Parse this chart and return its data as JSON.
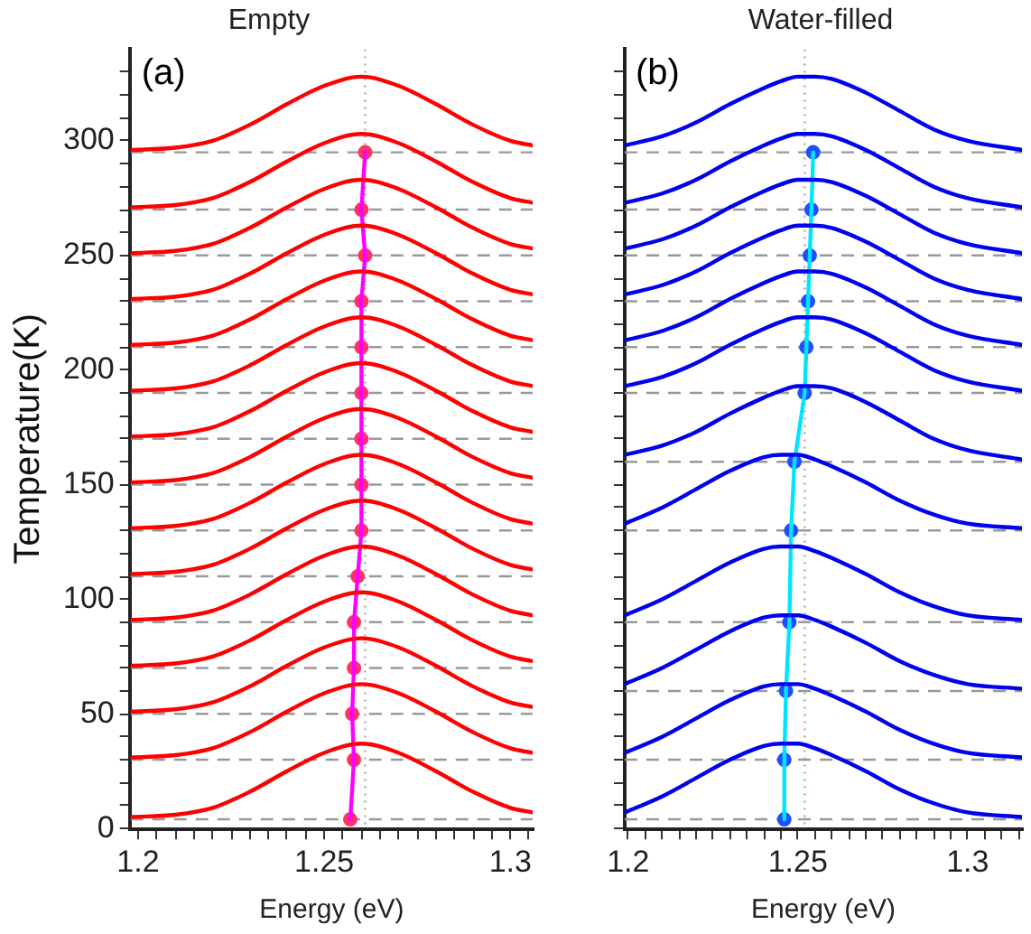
{
  "chart_data": [
    {
      "type": "line",
      "title": "Empty",
      "xlabel": "Energy (eV)",
      "ylabel": "Temperature(K)",
      "annotations": [
        "(a)"
      ],
      "grid": false,
      "x": [
        1.198,
        1.21,
        1.22,
        1.23,
        1.24,
        1.25,
        1.26,
        1.27,
        1.28,
        1.29,
        1.3,
        1.306
      ],
      "xlim": [
        1.198,
        1.306
      ],
      "xticks": [
        1.2,
        {
          "value": 1.205,
          "label": null
        },
        {
          "value": 1.21,
          "label": null
        },
        {
          "value": 1.215,
          "label": null
        },
        {
          "value": 1.22,
          "label": null
        },
        {
          "value": 1.225,
          "label": null
        },
        {
          "value": 1.23,
          "label": null
        },
        {
          "value": 1.235,
          "label": null
        },
        {
          "value": 1.24,
          "label": null
        },
        {
          "value": 1.245,
          "label": null
        },
        1.25,
        {
          "value": 1.255,
          "label": null
        },
        {
          "value": 1.26,
          "label": null
        },
        {
          "value": 1.265,
          "label": null
        },
        {
          "value": 1.27,
          "label": null
        },
        {
          "value": 1.275,
          "label": null
        },
        {
          "value": 1.28,
          "label": null
        },
        {
          "value": 1.285,
          "label": null
        },
        {
          "value": 1.29,
          "label": null
        },
        {
          "value": 1.295,
          "label": null
        },
        1.3,
        {
          "value": 1.305,
          "label": null
        }
      ],
      "ylim": [
        0,
        340
      ],
      "yticks": [
        0,
        {
          "value": 10,
          "label": null
        },
        {
          "value": 20,
          "label": null
        },
        {
          "value": 30,
          "label": null
        },
        {
          "value": 40,
          "label": null
        },
        50,
        {
          "value": 60,
          "label": null
        },
        {
          "value": 70,
          "label": null
        },
        {
          "value": 80,
          "label": null
        },
        {
          "value": 90,
          "label": null
        },
        100,
        {
          "value": 110,
          "label": null
        },
        {
          "value": 120,
          "label": null
        },
        {
          "value": 130,
          "label": null
        },
        {
          "value": 140,
          "label": null
        },
        150,
        {
          "value": 160,
          "label": null
        },
        {
          "value": 170,
          "label": null
        },
        {
          "value": 180,
          "label": null
        },
        {
          "value": 190,
          "label": null
        },
        200,
        {
          "value": 210,
          "label": null
        },
        {
          "value": 220,
          "label": null
        },
        {
          "value": 230,
          "label": null
        },
        {
          "value": 240,
          "label": null
        },
        250,
        {
          "value": 260,
          "label": null
        },
        {
          "value": 270,
          "label": null
        },
        {
          "value": 280,
          "label": null
        },
        {
          "value": 290,
          "label": null
        },
        300,
        {
          "value": 310,
          "label": null
        },
        {
          "value": 320,
          "label": null
        },
        {
          "value": 330,
          "label": null
        }
      ],
      "series": [
        {
          "color": "#ff0000",
          "values": [
            5,
            6,
            9,
            16,
            25,
            33,
            37,
            33,
            25,
            16,
            9,
            7
          ]
        },
        {
          "color": "#ff0000",
          "values": [
            31,
            32,
            35,
            42,
            51,
            59,
            63,
            59,
            51,
            42,
            35,
            33
          ]
        },
        {
          "color": "#ff0000",
          "values": [
            51,
            52,
            55,
            62,
            71,
            79,
            83,
            79,
            71,
            62,
            55,
            53
          ]
        },
        {
          "color": "#ff0000",
          "values": [
            71,
            72,
            75,
            82,
            91,
            99,
            103,
            99,
            91,
            82,
            75,
            73
          ]
        },
        {
          "color": "#ff0000",
          "values": [
            91,
            92,
            95,
            102,
            111,
            119,
            123,
            119,
            111,
            102,
            95,
            93
          ]
        },
        {
          "color": "#ff0000",
          "values": [
            111,
            112,
            115,
            122,
            131,
            139,
            143,
            139,
            131,
            122,
            115,
            113
          ]
        },
        {
          "color": "#ff0000",
          "values": [
            131,
            132,
            135,
            142,
            151,
            159,
            163,
            159,
            151,
            142,
            135,
            133
          ]
        },
        {
          "color": "#ff0000",
          "values": [
            151,
            152,
            155,
            162,
            171,
            179,
            183,
            179,
            171,
            162,
            155,
            153
          ]
        },
        {
          "color": "#ff0000",
          "values": [
            171,
            172,
            175,
            182,
            191,
            199,
            203,
            199,
            191,
            182,
            175,
            173
          ]
        },
        {
          "color": "#ff0000",
          "values": [
            191,
            192,
            195,
            202,
            211,
            219,
            223,
            219,
            211,
            202,
            195,
            193
          ]
        },
        {
          "color": "#ff0000",
          "values": [
            211,
            212,
            215,
            222,
            231,
            239,
            243,
            239,
            231,
            222,
            215,
            213
          ]
        },
        {
          "color": "#ff0000",
          "values": [
            231,
            232,
            235,
            242,
            251,
            259,
            263,
            259,
            251,
            242,
            235,
            233
          ]
        },
        {
          "color": "#ff0000",
          "values": [
            251,
            252,
            255,
            262,
            271,
            279,
            283,
            279,
            271,
            262,
            255,
            253
          ]
        },
        {
          "color": "#ff0000",
          "values": [
            271,
            272,
            275,
            282,
            291,
            299,
            303,
            299,
            291,
            282,
            275,
            273
          ]
        },
        {
          "color": "#ff0000",
          "values": [
            296,
            297,
            300,
            307,
            316,
            324,
            328,
            324,
            316,
            307,
            300,
            298
          ]
        },
        {
          "type": "line",
          "color": "#ff00ff",
          "marker": "none",
          "x": [
            1.257,
            1.258,
            1.2575,
            1.258,
            1.258,
            1.259,
            1.26,
            1.26,
            1.26,
            1.26,
            1.26,
            1.26,
            1.261,
            1.26,
            1.261
          ],
          "values": [
            4,
            30,
            50,
            70,
            90,
            110,
            130,
            150,
            170,
            190,
            210,
            230,
            250,
            270,
            295
          ]
        },
        {
          "type": "scatter",
          "color": "#ff3366",
          "marker": "circle",
          "x": [
            1.257,
            1.258,
            1.2575,
            1.258,
            1.258,
            1.259,
            1.26,
            1.26,
            1.26,
            1.26,
            1.26,
            1.26,
            1.261,
            1.26,
            1.261
          ],
          "values": [
            4,
            30,
            50,
            70,
            90,
            110,
            130,
            150,
            170,
            190,
            210,
            230,
            250,
            270,
            295
          ]
        }
      ],
      "ref_lines": [
        {
          "axis": "y",
          "value": 4,
          "color": "#999999",
          "line_style": "dashed"
        },
        {
          "axis": "y",
          "value": 30,
          "color": "#999999",
          "line_style": "dashed"
        },
        {
          "axis": "y",
          "value": 50,
          "color": "#999999",
          "line_style": "dashed"
        },
        {
          "axis": "y",
          "value": 70,
          "color": "#999999",
          "line_style": "dashed"
        },
        {
          "axis": "y",
          "value": 90,
          "color": "#999999",
          "line_style": "dashed"
        },
        {
          "axis": "y",
          "value": 110,
          "color": "#999999",
          "line_style": "dashed"
        },
        {
          "axis": "y",
          "value": 130,
          "color": "#999999",
          "line_style": "dashed"
        },
        {
          "axis": "y",
          "value": 150,
          "color": "#999999",
          "line_style": "dashed"
        },
        {
          "axis": "y",
          "value": 170,
          "color": "#999999",
          "line_style": "dashed"
        },
        {
          "axis": "y",
          "value": 190,
          "color": "#999999",
          "line_style": "dashed"
        },
        {
          "axis": "y",
          "value": 210,
          "color": "#999999",
          "line_style": "dashed"
        },
        {
          "axis": "y",
          "value": 230,
          "color": "#999999",
          "line_style": "dashed"
        },
        {
          "axis": "y",
          "value": 250,
          "color": "#999999",
          "line_style": "dashed"
        },
        {
          "axis": "y",
          "value": 270,
          "color": "#999999",
          "line_style": "dashed"
        },
        {
          "axis": "y",
          "value": 295,
          "color": "#999999",
          "line_style": "dashed"
        },
        {
          "axis": "x",
          "value": 1.261,
          "color": "#aaaaaa",
          "line_style": "dotted"
        }
      ]
    },
    {
      "type": "line",
      "title": "Water-filled",
      "xlabel": "Energy (eV)",
      "annotations": [
        "(b)"
      ],
      "grid": false,
      "tick_labels": "x",
      "x": [
        1.199,
        1.21,
        1.22,
        1.23,
        1.24,
        1.245,
        1.25,
        1.255,
        1.26,
        1.27,
        1.28,
        1.29,
        1.3,
        1.316
      ],
      "xlim": [
        1.199,
        1.316
      ],
      "xticks": [
        1.2,
        {
          "value": 1.205,
          "label": null
        },
        {
          "value": 1.21,
          "label": null
        },
        {
          "value": 1.215,
          "label": null
        },
        {
          "value": 1.22,
          "label": null
        },
        {
          "value": 1.225,
          "label": null
        },
        {
          "value": 1.23,
          "label": null
        },
        {
          "value": 1.235,
          "label": null
        },
        {
          "value": 1.24,
          "label": null
        },
        {
          "value": 1.245,
          "label": null
        },
        1.25,
        {
          "value": 1.255,
          "label": null
        },
        {
          "value": 1.26,
          "label": null
        },
        {
          "value": 1.265,
          "label": null
        },
        {
          "value": 1.27,
          "label": null
        },
        {
          "value": 1.275,
          "label": null
        },
        {
          "value": 1.28,
          "label": null
        },
        {
          "value": 1.285,
          "label": null
        },
        {
          "value": 1.29,
          "label": null
        },
        {
          "value": 1.295,
          "label": null
        },
        1.3,
        {
          "value": 1.305,
          "label": null
        },
        {
          "value": 1.31,
          "label": null
        },
        {
          "value": 1.315,
          "label": null
        }
      ],
      "ylim": [
        0,
        340
      ],
      "yticks": [
        0,
        {
          "value": 10,
          "label": null
        },
        {
          "value": 20,
          "label": null
        },
        {
          "value": 30,
          "label": null
        },
        {
          "value": 40,
          "label": null
        },
        50,
        {
          "value": 60,
          "label": null
        },
        {
          "value": 70,
          "label": null
        },
        {
          "value": 80,
          "label": null
        },
        {
          "value": 90,
          "label": null
        },
        100,
        {
          "value": 110,
          "label": null
        },
        {
          "value": 120,
          "label": null
        },
        {
          "value": 130,
          "label": null
        },
        {
          "value": 140,
          "label": null
        },
        150,
        {
          "value": 160,
          "label": null
        },
        {
          "value": 170,
          "label": null
        },
        {
          "value": 180,
          "label": null
        },
        {
          "value": 190,
          "label": null
        },
        200,
        {
          "value": 210,
          "label": null
        },
        {
          "value": 220,
          "label": null
        },
        {
          "value": 230,
          "label": null
        },
        {
          "value": 240,
          "label": null
        },
        250,
        {
          "value": 260,
          "label": null
        },
        {
          "value": 270,
          "label": null
        },
        {
          "value": 280,
          "label": null
        },
        {
          "value": 290,
          "label": null
        },
        300,
        {
          "value": 310,
          "label": null
        },
        {
          "value": 320,
          "label": null
        },
        {
          "value": 330,
          "label": null
        }
      ],
      "series": [
        {
          "color": "#0000ee",
          "values": [
            7,
            14,
            22,
            30,
            36,
            37,
            37,
            35,
            32,
            25,
            17,
            11,
            7,
            5
          ]
        },
        {
          "color": "#0000ee",
          "values": [
            33,
            40,
            48,
            56,
            62,
            63,
            63,
            61,
            58,
            51,
            43,
            37,
            33,
            31
          ]
        },
        {
          "color": "#0000ee",
          "values": [
            63,
            70,
            78,
            86,
            92,
            93,
            93,
            91,
            88,
            81,
            73,
            67,
            63,
            61
          ]
        },
        {
          "color": "#0000ee",
          "values": [
            93,
            100,
            108,
            116,
            122,
            123,
            123,
            121,
            118,
            111,
            103,
            97,
            93,
            91
          ]
        },
        {
          "color": "#0000ee",
          "values": [
            133,
            140,
            148,
            156,
            162,
            163,
            163,
            161,
            158,
            151,
            143,
            137,
            133,
            131
          ]
        },
        {
          "color": "#0000ee",
          "values": [
            163,
            167,
            173,
            181,
            188,
            191,
            193,
            193,
            192,
            186,
            178,
            170,
            165,
            161
          ]
        },
        {
          "color": "#0000ee",
          "values": [
            193,
            197,
            203,
            211,
            218,
            221,
            223,
            223,
            222,
            216,
            208,
            200,
            195,
            191
          ]
        },
        {
          "color": "#0000ee",
          "values": [
            213,
            217,
            223,
            231,
            238,
            241,
            243,
            243,
            242,
            236,
            228,
            220,
            215,
            211
          ]
        },
        {
          "color": "#0000ee",
          "values": [
            233,
            237,
            243,
            251,
            258,
            261,
            263,
            263,
            262,
            256,
            248,
            240,
            235,
            231
          ]
        },
        {
          "color": "#0000ee",
          "values": [
            253,
            257,
            263,
            271,
            278,
            281,
            283,
            283,
            282,
            276,
            268,
            260,
            255,
            251
          ]
        },
        {
          "color": "#0000ee",
          "values": [
            273,
            277,
            283,
            291,
            298,
            301,
            303,
            303,
            302,
            296,
            288,
            280,
            275,
            271
          ]
        },
        {
          "color": "#0000ee",
          "values": [
            298,
            302,
            308,
            316,
            323,
            326,
            328,
            328,
            327,
            321,
            313,
            305,
            300,
            296
          ]
        },
        {
          "type": "line",
          "color": "#00e5ff",
          "marker": "none",
          "x": [
            1.246,
            1.246,
            1.2465,
            1.2475,
            1.248,
            1.249,
            1.252,
            1.2525,
            1.253,
            1.2535,
            1.254,
            1.2545
          ],
          "values": [
            4,
            30,
            60,
            90,
            130,
            160,
            190,
            210,
            230,
            250,
            270,
            295
          ]
        },
        {
          "type": "scatter",
          "color": "#1e50ff",
          "marker": "circle",
          "x": [
            1.246,
            1.246,
            1.2465,
            1.2475,
            1.248,
            1.249,
            1.252,
            1.2525,
            1.253,
            1.2535,
            1.254,
            1.2545
          ],
          "values": [
            4,
            30,
            60,
            90,
            130,
            160,
            190,
            210,
            230,
            250,
            270,
            295
          ]
        }
      ],
      "ref_lines": [
        {
          "axis": "y",
          "value": 4,
          "color": "#999999",
          "line_style": "dashed"
        },
        {
          "axis": "y",
          "value": 30,
          "color": "#999999",
          "line_style": "dashed"
        },
        {
          "axis": "y",
          "value": 60,
          "color": "#999999",
          "line_style": "dashed"
        },
        {
          "axis": "y",
          "value": 90,
          "color": "#999999",
          "line_style": "dashed"
        },
        {
          "axis": "y",
          "value": 130,
          "color": "#999999",
          "line_style": "dashed"
        },
        {
          "axis": "y",
          "value": 160,
          "color": "#999999",
          "line_style": "dashed"
        },
        {
          "axis": "y",
          "value": 190,
          "color": "#999999",
          "line_style": "dashed"
        },
        {
          "axis": "y",
          "value": 210,
          "color": "#999999",
          "line_style": "dashed"
        },
        {
          "axis": "y",
          "value": 230,
          "color": "#999999",
          "line_style": "dashed"
        },
        {
          "axis": "y",
          "value": 250,
          "color": "#999999",
          "line_style": "dashed"
        },
        {
          "axis": "y",
          "value": 270,
          "color": "#999999",
          "line_style": "dashed"
        },
        {
          "axis": "y",
          "value": 295,
          "color": "#999999",
          "line_style": "dashed"
        },
        {
          "axis": "x",
          "value": 1.252,
          "color": "#aaaaaa",
          "line_style": "dotted"
        }
      ]
    }
  ]
}
